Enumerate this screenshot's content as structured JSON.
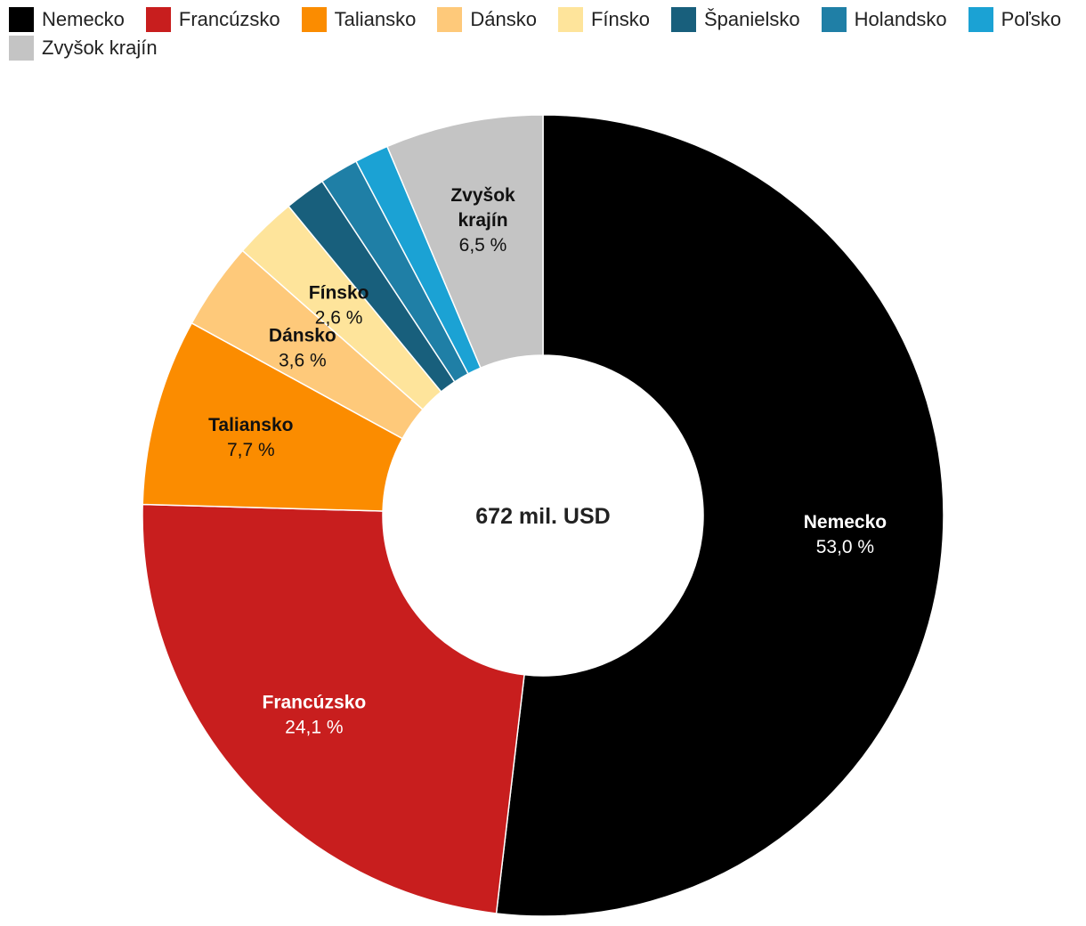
{
  "chart_data": {
    "type": "pie",
    "variant": "donut",
    "title": "",
    "center_label": "672 mil. USD",
    "legend_position": "top-left",
    "categories": [
      "Nemecko",
      "Francúzsko",
      "Taliansko",
      "Dánsko",
      "Fínsko",
      "Španielsko",
      "Holandsko",
      "Poľsko",
      "Zvyšok krajín"
    ],
    "values": [
      53.0,
      24.1,
      7.7,
      3.6,
      2.6,
      1.7,
      1.6,
      1.4,
      6.5
    ],
    "value_labels": [
      "53,0 %",
      "24,1 %",
      "7,7 %",
      "3,6 %",
      "2,6 %",
      "",
      "",
      "",
      "6,5 %"
    ],
    "colors": [
      "#000000",
      "#c81e1e",
      "#fb8c00",
      "#fec97a",
      "#fee49b",
      "#185f7c",
      "#1f7fa6",
      "#1ba2d4",
      "#c4c4c4"
    ],
    "slice_label_lines": [
      [
        "Nemecko"
      ],
      [
        "Francúzsko"
      ],
      [
        "Taliansko"
      ],
      [
        "Dánsko"
      ],
      [
        "Fínsko"
      ],
      [],
      [],
      [],
      [
        "Zvyšok",
        "krajín"
      ]
    ],
    "label_text_colors": [
      "#ffffff",
      "#ffffff",
      "#111111",
      "#111111",
      "#111111",
      "#111111",
      "#111111",
      "#111111",
      "#111111"
    ]
  }
}
